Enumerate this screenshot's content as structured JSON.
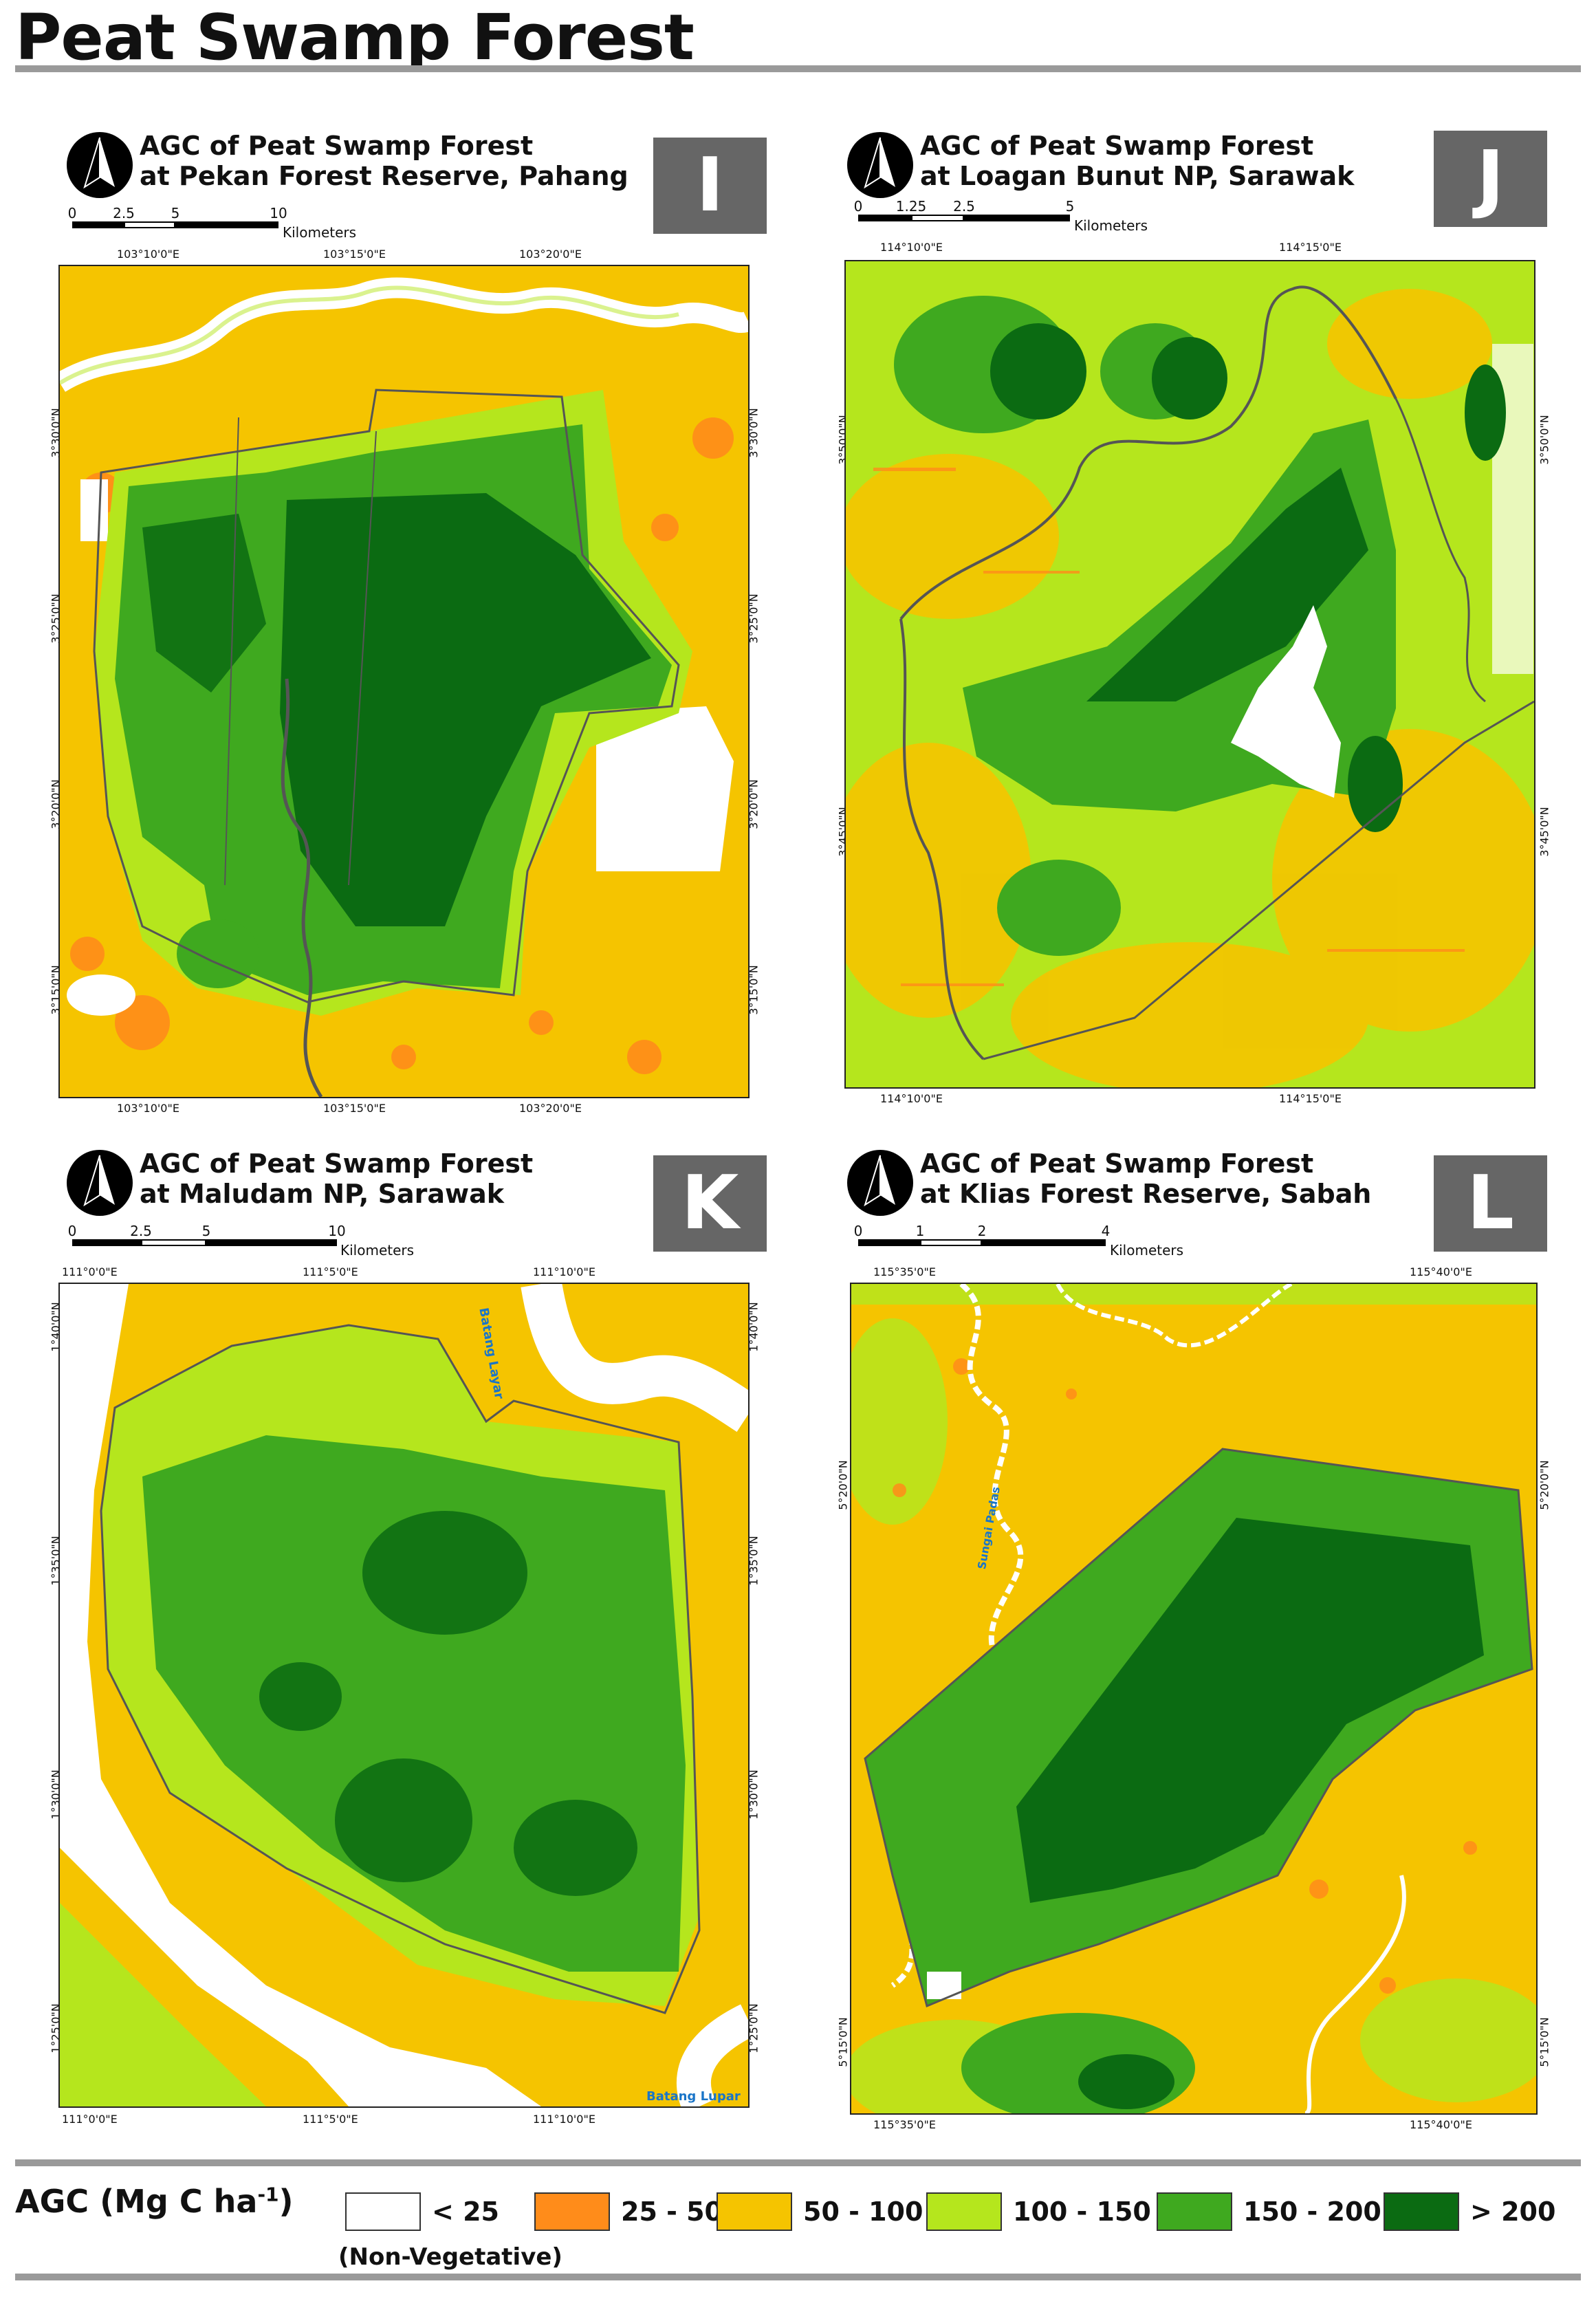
{
  "page": {
    "title": "Peat Swamp Forest"
  },
  "colors": {
    "non_vegetative": "#ffffff",
    "c25_50": "#ff8c1a",
    "c50_100": "#f5c400",
    "c100_150": "#b5e61d",
    "c150_200": "#3fa91f",
    "c200_plus": "#0b6b12",
    "boundary": "#555555",
    "panel_letter_bg": "#666666",
    "river_label": "#1a75c8",
    "rule": "#9a9a9a"
  },
  "panels": [
    {
      "letter": "I",
      "title_line1": "AGC of Peat Swamp Forest",
      "title_line2": "at Pekan Forest Reserve, Pahang",
      "scale_ticks": [
        "0",
        "2.5",
        "5",
        "10"
      ],
      "scale_unit": "Kilometers",
      "top_coords": [
        "103°10'0\"E",
        "103°15'0\"E",
        "103°20'0\"E"
      ],
      "bottom_coords": [
        "103°10'0\"E",
        "103°15'0\"E",
        "103°20'0\"E"
      ],
      "left_coords": [
        "3°30'0\"N",
        "3°25'0\"N",
        "3°20'0\"N",
        "3°15'0\"N"
      ],
      "right_coords": [
        "3°30'0\"N",
        "3°25'0\"N",
        "3°20'0\"N",
        "3°15'0\"N"
      ],
      "river_labels": []
    },
    {
      "letter": "J",
      "title_line1": "AGC of Peat Swamp Forest",
      "title_line2": "at Loagan Bunut NP, Sarawak",
      "scale_ticks": [
        "0",
        "1.25",
        "2.5",
        "5"
      ],
      "scale_unit": "Kilometers",
      "top_coords": [
        "114°10'0\"E",
        "114°15'0\"E"
      ],
      "bottom_coords": [
        "114°10'0\"E",
        "114°15'0\"E"
      ],
      "left_coords": [
        "3°50'0\"N",
        "3°45'0\"N"
      ],
      "right_coords": [
        "3°50'0\"N",
        "3°45'0\"N"
      ],
      "river_labels": []
    },
    {
      "letter": "K",
      "title_line1": "AGC of Peat Swamp Forest",
      "title_line2": "at Maludam NP, Sarawak",
      "scale_ticks": [
        "0",
        "2.5",
        "5",
        "10"
      ],
      "scale_unit": "Kilometers",
      "top_coords": [
        "111°0'0\"E",
        "111°5'0\"E",
        "111°10'0\"E"
      ],
      "bottom_coords": [
        "111°0'0\"E",
        "111°5'0\"E",
        "111°10'0\"E"
      ],
      "left_coords": [
        "1°40'0\"N",
        "1°35'0\"N",
        "1°30'0\"N",
        "1°25'0\"N"
      ],
      "right_coords": [
        "1°40'0\"N",
        "1°35'0\"N",
        "1°30'0\"N",
        "1°25'0\"N"
      ],
      "river_labels": [
        "Batang Layar",
        "Batang Lupar"
      ]
    },
    {
      "letter": "L",
      "title_line1": "AGC of Peat Swamp Forest",
      "title_line2": "at Klias Forest Reserve, Sabah",
      "scale_ticks": [
        "0",
        "1",
        "2",
        "4"
      ],
      "scale_unit": "Kilometers",
      "top_coords": [
        "115°35'0\"E",
        "115°40'0\"E"
      ],
      "bottom_coords": [
        "115°35'0\"E",
        "115°40'0\"E"
      ],
      "left_coords": [
        "5°20'0\"N",
        "5°15'0\"N"
      ],
      "right_coords": [
        "5°20'0\"N",
        "5°15'0\"N"
      ],
      "river_labels": [
        "Sungai Padas"
      ]
    }
  ],
  "legend": {
    "title": "AGC (Mg C ha",
    "title_sup": "-1",
    "title_end": ")",
    "items": [
      {
        "label": "< 25",
        "color": "#ffffff"
      },
      {
        "label": "25 - 50",
        "color": "#ff8c1a"
      },
      {
        "label": "50 - 100",
        "color": "#f5c400"
      },
      {
        "label": "100 - 150",
        "color": "#b5e61d"
      },
      {
        "label": "150 - 200",
        "color": "#3fa91f"
      },
      {
        "label": "> 200",
        "color": "#0b6b12"
      }
    ],
    "sub_label": "(Non-Vegetative)"
  }
}
